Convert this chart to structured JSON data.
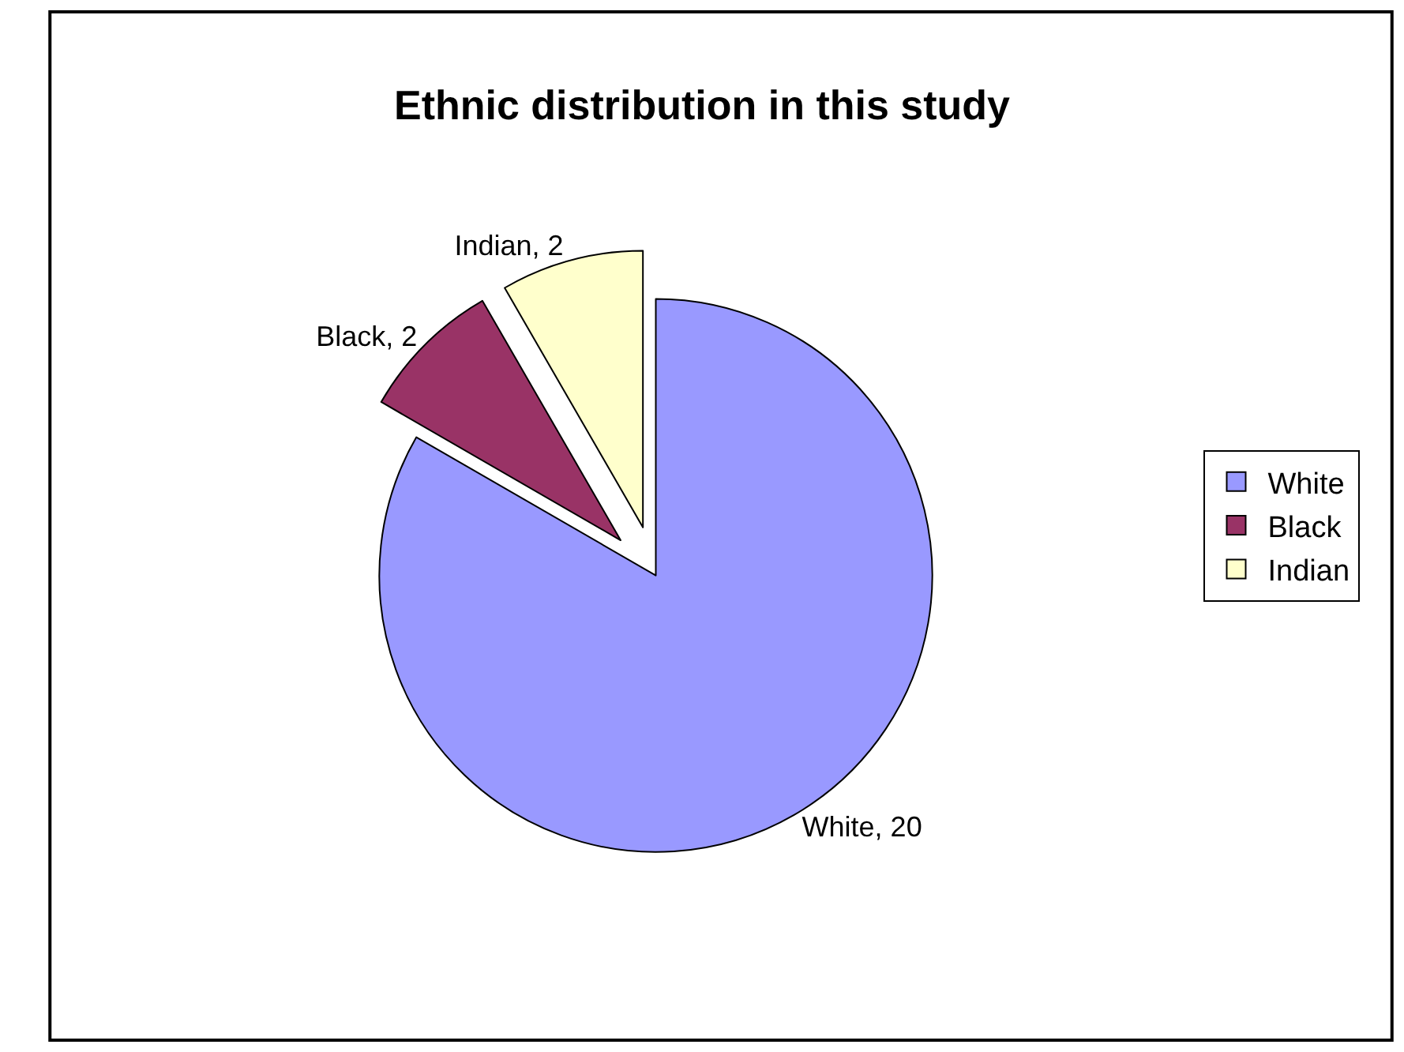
{
  "chart_data": {
    "type": "pie",
    "title": "Ethnic distribution in this study",
    "categories": [
      "White",
      "Black",
      "Indian"
    ],
    "values": [
      20,
      2,
      2
    ],
    "colors": [
      "#9999ff",
      "#993366",
      "#ffffcc"
    ],
    "value_labels": [
      "White, 20",
      "Black, 2",
      "Indian, 2"
    ],
    "legend": "right"
  }
}
